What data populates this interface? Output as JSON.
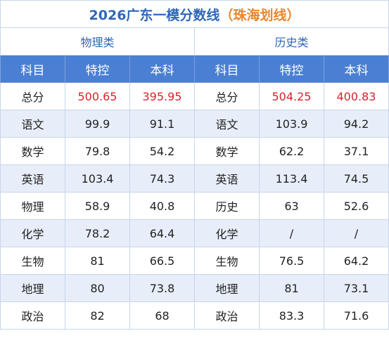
{
  "title": {
    "main": "2026广东一模分数线",
    "note": "（珠海划线）"
  },
  "groups": [
    "物理类",
    "历史类"
  ],
  "header": [
    "科目",
    "特控",
    "本科",
    "科目",
    "特控",
    "本科"
  ],
  "rows": [
    [
      "总分",
      "500.65",
      "395.95",
      "总分",
      "504.25",
      "400.83"
    ],
    [
      "语文",
      "99.9",
      "91.1",
      "语文",
      "103.9",
      "94.2"
    ],
    [
      "数学",
      "79.8",
      "54.2",
      "数学",
      "62.2",
      "37.1"
    ],
    [
      "英语",
      "103.4",
      "74.3",
      "英语",
      "113.4",
      "74.5"
    ],
    [
      "物理",
      "58.9",
      "40.8",
      "历史",
      "63",
      "52.6"
    ],
    [
      "化学",
      "78.2",
      "64.4",
      "化学",
      "/",
      "/"
    ],
    [
      "生物",
      "81",
      "66.5",
      "生物",
      "76.5",
      "64.2"
    ],
    [
      "地理",
      "80",
      "73.8",
      "地理",
      "81",
      "73.1"
    ],
    [
      "政治",
      "82",
      "68",
      "政治",
      "83.3",
      "71.6"
    ]
  ]
}
